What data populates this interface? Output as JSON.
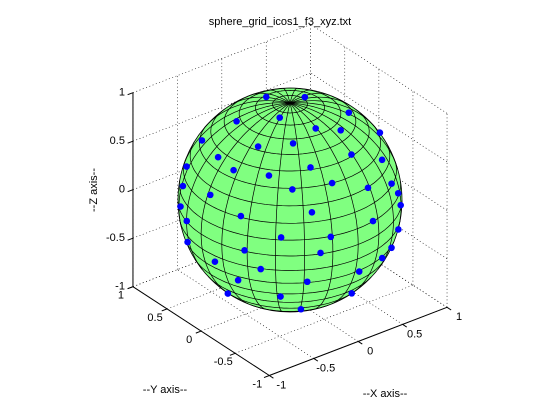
{
  "chart_data": {
    "type": "scatter3",
    "title": "sphere_grid_icos1_f3_xyz.txt",
    "xlabel": "--X axis--",
    "ylabel": "--Y axis--",
    "zlabel": "--Z axis--",
    "x": [
      -0.06,
      0.19,
      -0.44,
      -0.2,
      -0.01,
      0.47,
      -0.63,
      -0.52,
      -0.28,
      0.21,
      0.82,
      -0.74,
      0.17,
      0.53,
      -0.78,
      -0.75,
      -0.59,
      -0.26,
      -0.14,
      0.56,
      -0.86,
      -0.92,
      -0.48,
      0.21,
      0.65,
      -0.91,
      -0.86,
      -0.39,
      0.19,
      0.77,
      -0.97,
      -0.66,
      -0.27,
      0.69,
      -0.93,
      -0.96,
      -0.88,
      -0.37,
      0.59,
      -0.79,
      0.05,
      0.37,
      -0.86,
      -0.45,
      0.15,
      -0.59,
      -0.73,
      -0.33
    ],
    "y": [
      0.27,
      0.03,
      0.21,
      -0.11,
      -0.39,
      -0.25,
      0.47,
      -0.21,
      -0.41,
      -0.47,
      -0.25,
      0.09,
      -0.68,
      -0.66,
      0.5,
      -0.15,
      -0.46,
      -0.64,
      -0.8,
      -0.76,
      0.45,
      -0.03,
      -0.66,
      -0.87,
      -0.74,
      0.42,
      -0.4,
      -0.83,
      -0.97,
      -0.62,
      0.25,
      -0.73,
      -0.95,
      -0.69,
      0.29,
      -0.15,
      -0.48,
      -0.93,
      -0.72,
      -0.6,
      -0.95,
      -0.87,
      -0.36,
      -0.84,
      -0.71,
      -0.63,
      -0.04,
      -0.59
    ],
    "z": [
      0.96,
      0.98,
      0.87,
      0.97,
      0.92,
      0.85,
      0.62,
      0.83,
      0.87,
      0.86,
      0.52,
      0.66,
      0.72,
      0.53,
      0.39,
      0.64,
      0.67,
      0.72,
      0.59,
      0.32,
      0.24,
      0.39,
      0.58,
      0.45,
      0.18,
      0.06,
      0.32,
      0.39,
      0.16,
      -0.04,
      0.01,
      0.18,
      0.15,
      -0.23,
      -0.24,
      -0.23,
      0.01,
      0.01,
      -0.37,
      -0.16,
      -0.32,
      -0.33,
      -0.36,
      -0.3,
      -0.69,
      -0.5,
      -0.69,
      -0.74
    ],
    "color": "#0000ff",
    "surface_color": "#80ff80",
    "xlim": [
      -1,
      1
    ],
    "ylim": [
      -1,
      1
    ],
    "zlim": [
      -1,
      1
    ],
    "xticks": [
      -1,
      -0.5,
      0,
      0.5,
      1
    ],
    "yticks": [
      -1,
      -0.5,
      0,
      0.5,
      1
    ],
    "zticks": [
      -1,
      -0.5,
      0,
      0.5,
      1
    ],
    "grid": true
  }
}
